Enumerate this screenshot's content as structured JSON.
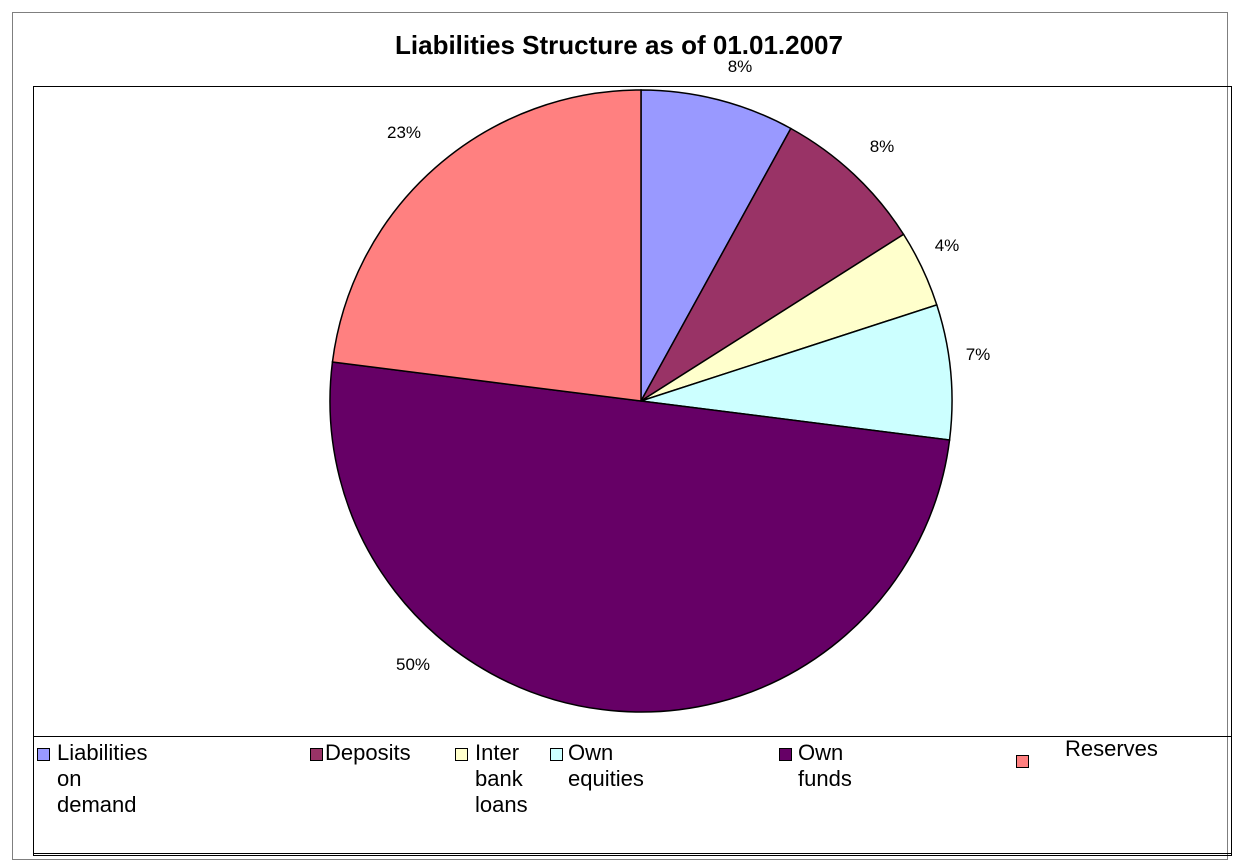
{
  "chart_data": {
    "type": "pie",
    "title": "Liabilities Structure as of 01.01.2007",
    "categories": [
      "Liabilities on demand",
      "Deposits",
      "Inter bank loans",
      "Own equities",
      "Own funds",
      "Reserves"
    ],
    "values": [
      8,
      8,
      4,
      7,
      50,
      23
    ],
    "data_labels": [
      "8%",
      "8%",
      "4%",
      "7%",
      "50%",
      "23%"
    ],
    "colors": [
      "#9999ff",
      "#993366",
      "#ffffcc",
      "#ccffff",
      "#660066",
      "#ff8080"
    ],
    "legend_position": "bottom"
  },
  "legend": {
    "items": [
      {
        "label": "Liabilities on demand"
      },
      {
        "label": "Deposits"
      },
      {
        "label": "Inter\nbank\nloans"
      },
      {
        "label": "Own equities"
      },
      {
        "label": "Own funds"
      },
      {
        "label": "Reserves"
      }
    ]
  }
}
